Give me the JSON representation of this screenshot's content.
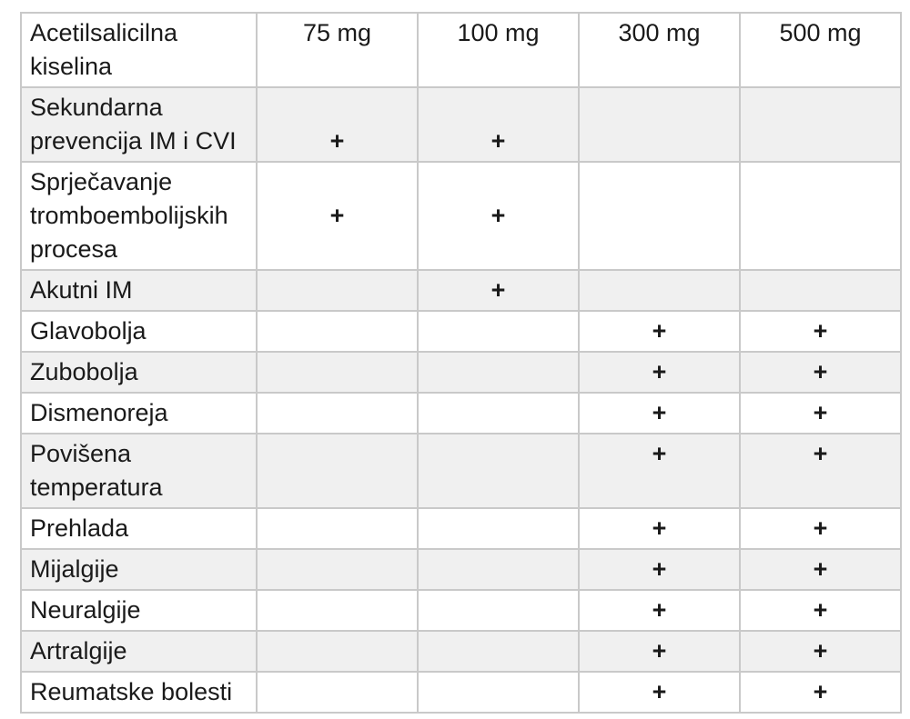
{
  "page": {
    "background": "#ffffff"
  },
  "table": {
    "header": {
      "label": "Acetilsalicilna kiselina",
      "columns": [
        "75 mg",
        "100 mg",
        "300 mg",
        "500 mg"
      ]
    },
    "rows": [
      {
        "label": "Sekundarna prevencija IM i CVI",
        "cells": [
          "\n+",
          "\n+",
          "",
          ""
        ]
      },
      {
        "label": "Sprječavanje tromboembolijskih procesa",
        "cells": [
          "\n+",
          "\n+",
          "",
          ""
        ]
      },
      {
        "label": "Akutni IM",
        "cells": [
          "",
          "+",
          "",
          ""
        ]
      },
      {
        "label": "Glavobolja",
        "cells": [
          "",
          "",
          "+",
          "+"
        ]
      },
      {
        "label": "Zubobolja",
        "cells": [
          "",
          "",
          "+",
          "+"
        ]
      },
      {
        "label": "Dismenoreja",
        "cells": [
          "",
          "",
          "+",
          "+"
        ]
      },
      {
        "label": "Povišena temperatura",
        "cells": [
          "",
          "",
          "+",
          "+"
        ]
      },
      {
        "label": "Prehlada",
        "cells": [
          "",
          "",
          "+",
          "+"
        ]
      },
      {
        "label": "Mijalgije",
        "cells": [
          "",
          "",
          "+",
          "+"
        ]
      },
      {
        "label": "Neuralgije",
        "cells": [
          "",
          "",
          "+",
          "+"
        ]
      },
      {
        "label": "Artralgije",
        "cells": [
          "",
          "",
          "+",
          "+"
        ]
      },
      {
        "label": "Reumatske bolesti",
        "cells": [
          "",
          "",
          "+",
          "+"
        ]
      }
    ],
    "colors": {
      "band_fill": "#f0f0f0",
      "border": "#c9c9c9",
      "text": "#1a1a1a",
      "row_fill": "#ffffff"
    },
    "mark_symbol": "+"
  }
}
